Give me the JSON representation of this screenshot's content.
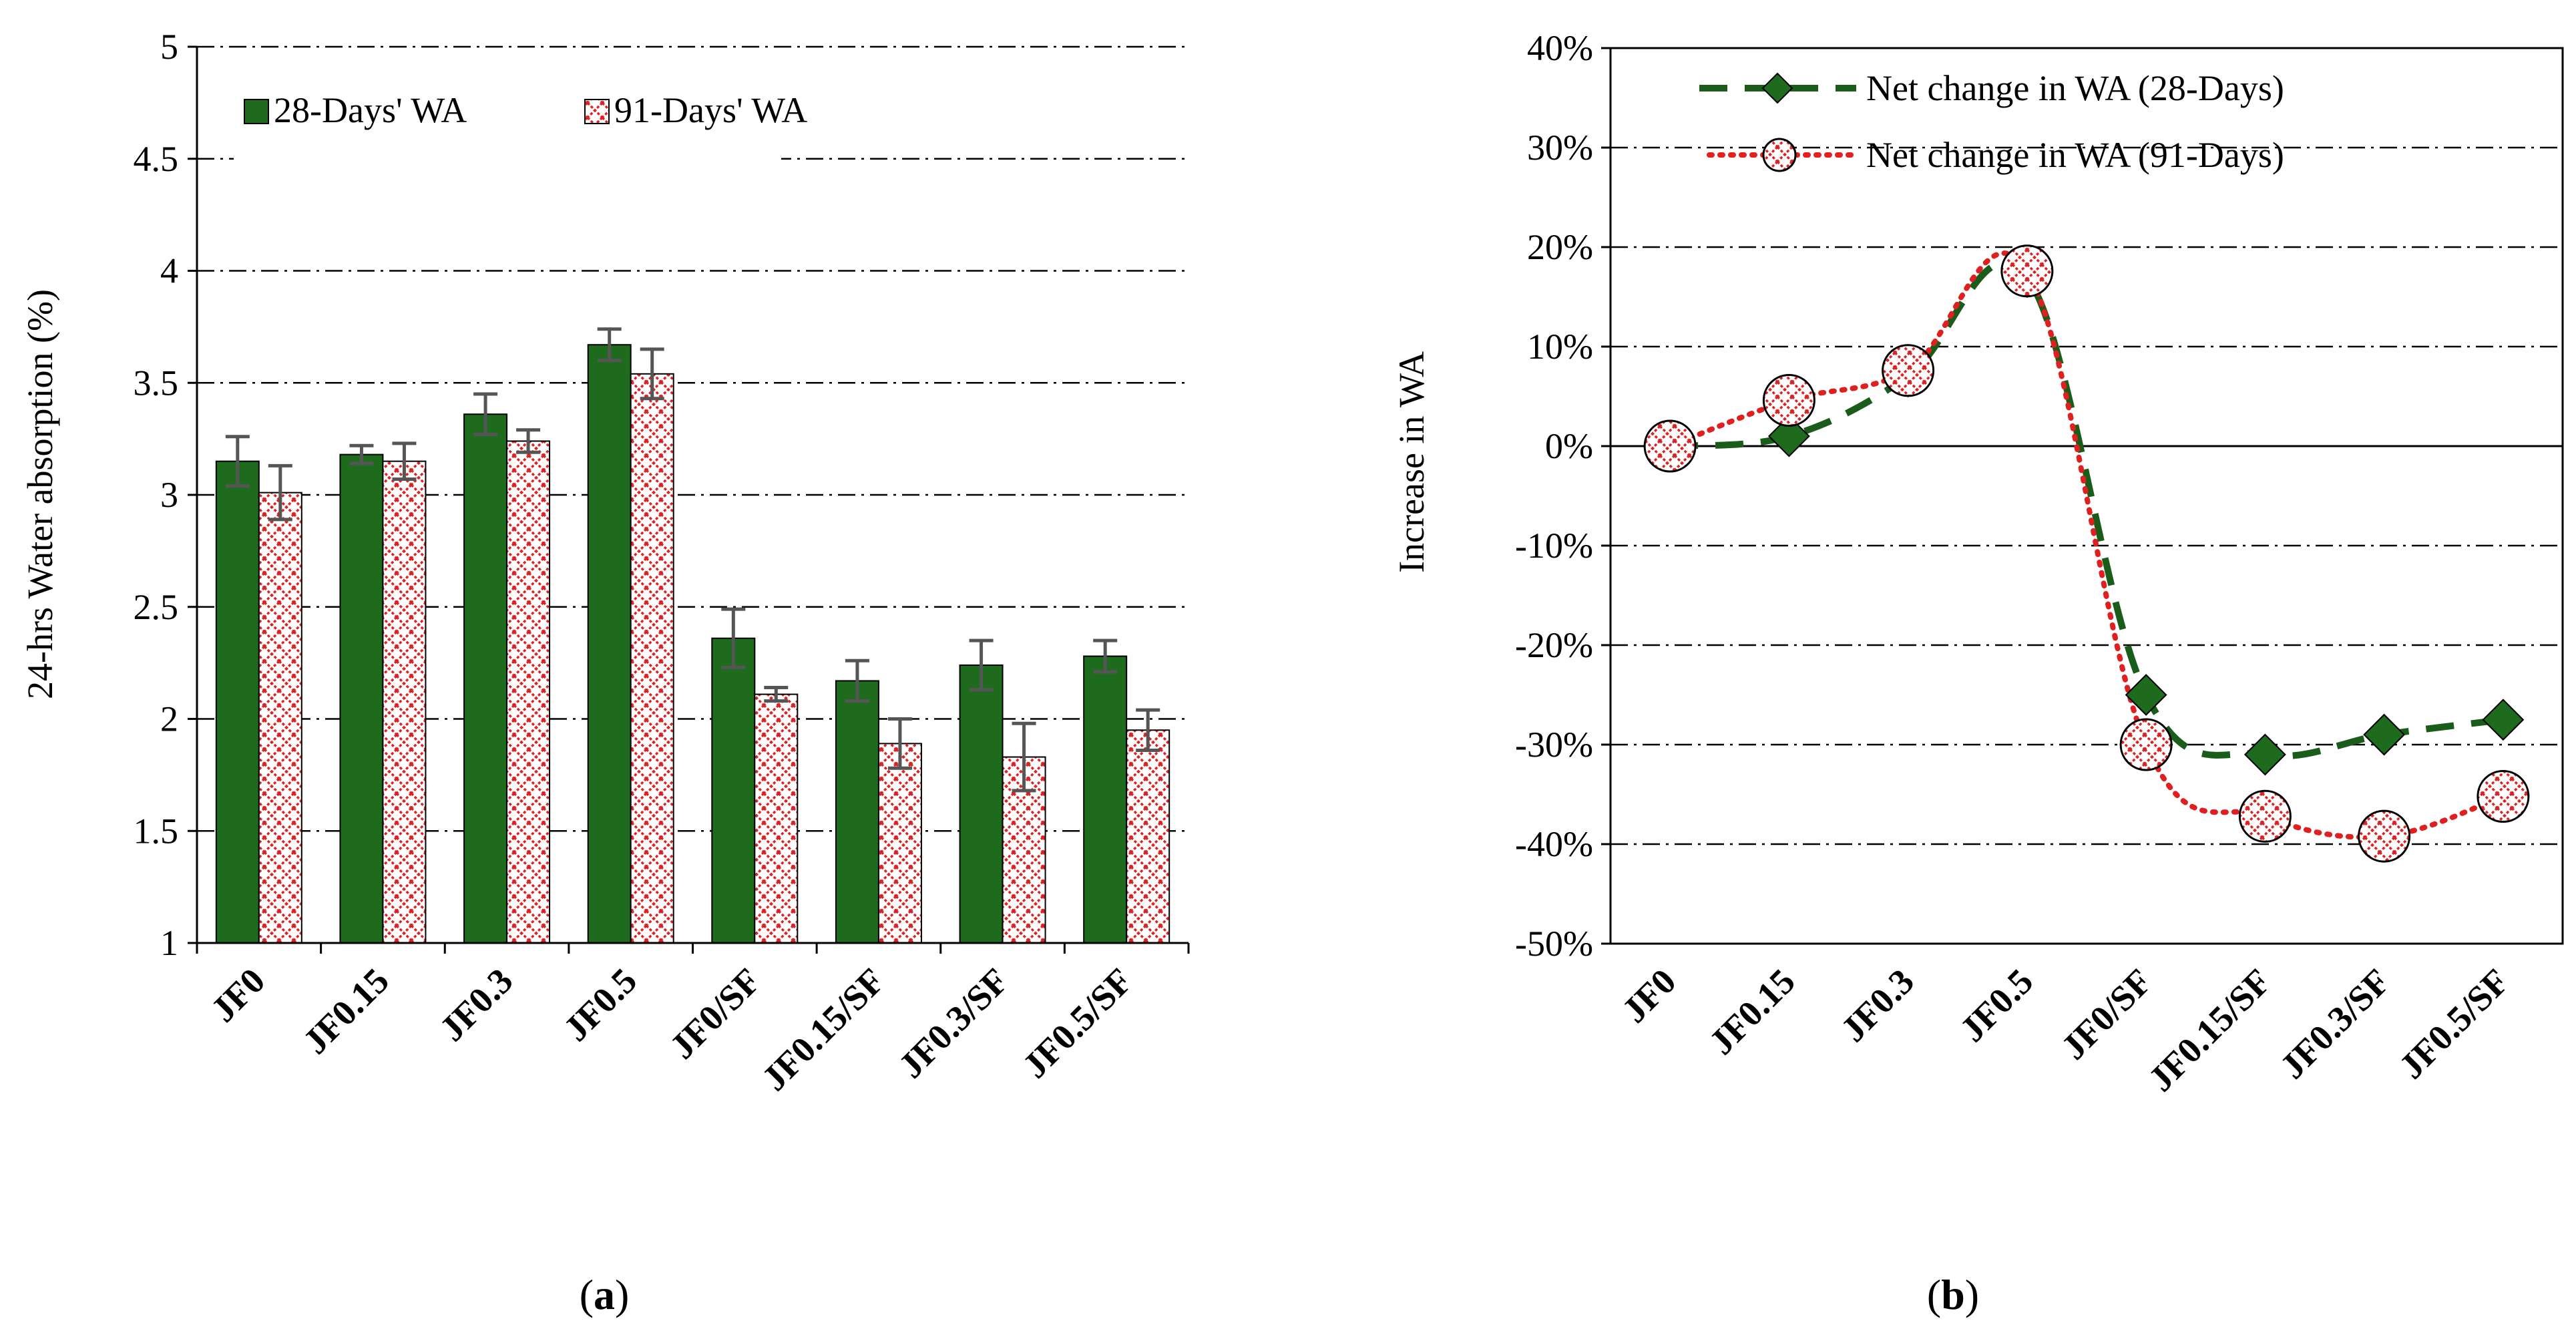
{
  "figure_caption_a": {
    "open": "(",
    "letter": "a",
    "close": ")"
  },
  "figure_caption_b": {
    "open": "(",
    "letter": "b",
    "close": ")"
  },
  "colors": {
    "green": "#1e6b1e",
    "red": "#e02020",
    "dark_green": "#1a5c1a",
    "error_bar": "#555555"
  },
  "chart_data": [
    {
      "type": "bar",
      "title": "",
      "xlabel": "",
      "ylabel": "24-hrs Water absorption (%)",
      "ylim": [
        1,
        5
      ],
      "yticks": [
        "1",
        "1.5",
        "2",
        "2.5",
        "3",
        "3.5",
        "4",
        "4.5",
        "5"
      ],
      "grid": true,
      "legend_position": "top-left",
      "categories": [
        "JF0",
        "JF0.15",
        "JF0.3",
        "JF0.5",
        "JF0/SF",
        "JF0.15/SF",
        "JF0.3/SF",
        "JF0.5/SF"
      ],
      "series": [
        {
          "name": "28-Days' WA",
          "values": [
            3.15,
            3.18,
            3.36,
            3.67,
            2.36,
            2.17,
            2.24,
            2.28
          ],
          "errors": [
            0.11,
            0.04,
            0.09,
            0.07,
            0.13,
            0.09,
            0.11,
            0.07
          ]
        },
        {
          "name": "91-Days' WA",
          "values": [
            3.01,
            3.15,
            3.24,
            3.54,
            2.11,
            1.89,
            1.83,
            1.95
          ],
          "errors": [
            0.12,
            0.08,
            0.05,
            0.11,
            0.03,
            0.11,
            0.15,
            0.09
          ]
        }
      ]
    },
    {
      "type": "line",
      "title": "",
      "xlabel": "",
      "ylabel": "Increase in WA",
      "ylim": [
        -50,
        40
      ],
      "yticks": [
        "-50%",
        "-40%",
        "-30%",
        "-20%",
        "-10%",
        "0%",
        "10%",
        "20%",
        "30%",
        "40%"
      ],
      "grid": true,
      "legend_position": "top",
      "categories": [
        "JF0",
        "JF0.15",
        "JF0.3",
        "JF0.5",
        "JF0/SF",
        "JF0.15/SF",
        "JF0.3/SF",
        "JF0.5/SF"
      ],
      "series": [
        {
          "name": "Net change in WA (28-Days)",
          "values": [
            0,
            1,
            7,
            17,
            -25,
            -31,
            -29,
            -27.5
          ]
        },
        {
          "name": "Net change in WA (91-Days)",
          "values": [
            0,
            4.6,
            7.6,
            17.6,
            -30,
            -37.2,
            -39.2,
            -35.2
          ]
        }
      ]
    }
  ]
}
